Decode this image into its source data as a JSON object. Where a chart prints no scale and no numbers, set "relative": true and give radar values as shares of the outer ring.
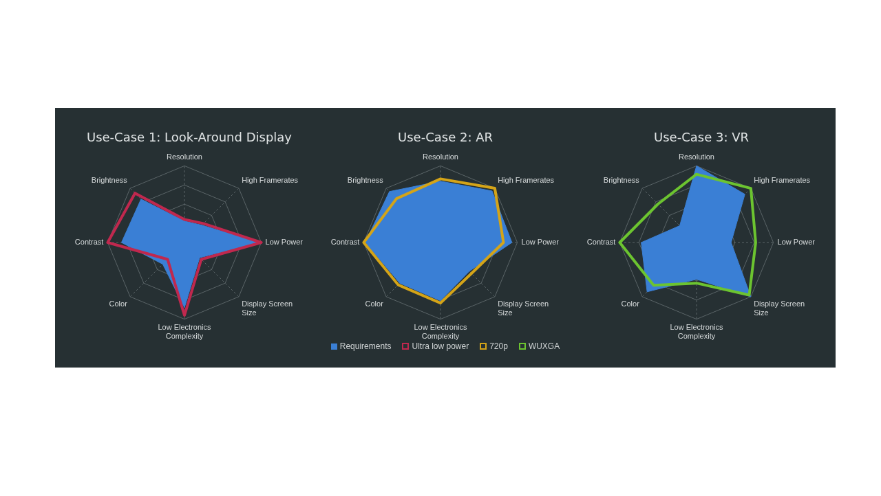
{
  "chart_data": [
    {
      "type": "radar",
      "title": "Use-Case 1: Look-Around Display",
      "relative": true,
      "grid": true,
      "marker": "none",
      "legend": "bottom",
      "categories": [
        "Resolution",
        "High Framerates",
        "Low Power",
        "Display Screen Size",
        "Low Electronics Complexity",
        "Color",
        "Contrast",
        "Brightness"
      ],
      "series": [
        {
          "name": "Requirements",
          "color": "#3a7fd5",
          "values": [
            0.28,
            0.32,
            0.98,
            0.28,
            0.85,
            0.4,
            0.82,
            0.8
          ]
        },
        {
          "name": "Ultra low power",
          "color": "#c0284e",
          "values": [
            0.3,
            0.35,
            1.0,
            0.31,
            0.95,
            0.31,
            1.0,
            0.91
          ]
        }
      ]
    },
    {
      "type": "radar",
      "title": "Use-Case 2: AR",
      "relative": true,
      "grid": true,
      "marker": "none",
      "legend": "bottom",
      "categories": [
        "Resolution",
        "High Framerates",
        "Low Power",
        "Display Screen Size",
        "Low Electronics Complexity",
        "Color",
        "Contrast",
        "Brightness"
      ],
      "series": [
        {
          "color": "#3a7fd5",
          "values": [
            0.8,
            0.95,
            0.93,
            0.53,
            0.76,
            0.75,
            0.98,
            0.94
          ]
        },
        {
          "name": "720p",
          "color": "#d4a418",
          "values": [
            0.83,
            1.0,
            0.82,
            0.57,
            0.79,
            0.78,
            1.0,
            0.81
          ]
        }
      ]
    },
    {
      "type": "radar",
      "title": "Use-Case 3: VR",
      "relative": true,
      "grid": true,
      "marker": "none",
      "legend": "bottom",
      "categories": [
        "Resolution",
        "High Framerates",
        "Low Power",
        "Display Screen Size",
        "Low Electronics Complexity",
        "Color",
        "Contrast",
        "Brightness"
      ],
      "series": [
        {
          "color": "#3a7fd5",
          "values": [
            1.0,
            0.89,
            0.45,
            1.0,
            0.48,
            0.91,
            0.72,
            0.31
          ]
        },
        {
          "name": "WUXGA",
          "color": "#6cc430",
          "values": [
            0.89,
            1.0,
            0.77,
            0.97,
            0.53,
            0.79,
            1.0,
            0.71
          ]
        }
      ]
    }
  ]
}
